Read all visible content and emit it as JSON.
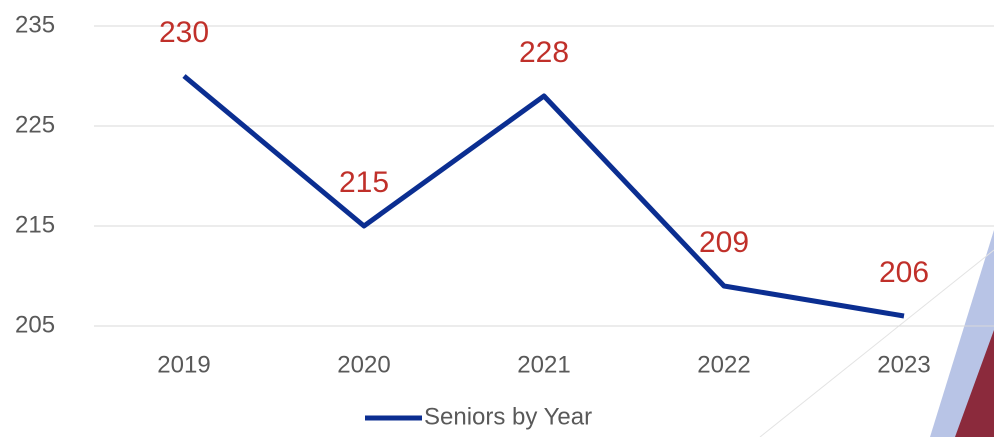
{
  "chart_data": {
    "type": "line",
    "categories": [
      "2019",
      "2020",
      "2021",
      "2022",
      "2023"
    ],
    "series": [
      {
        "name": "Seniors by Year",
        "color": "#0b2e91",
        "values": [
          230,
          215,
          228,
          209,
          206
        ]
      }
    ],
    "label_color": "#c0302a",
    "ylim": [
      205,
      235
    ],
    "yticks": [
      205,
      215,
      225,
      235
    ],
    "grid": true
  }
}
